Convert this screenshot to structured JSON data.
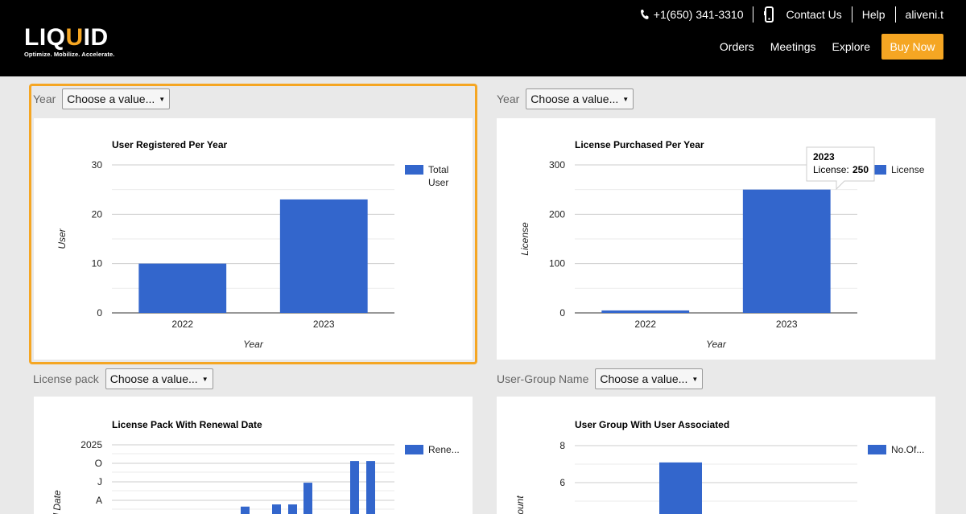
{
  "header": {
    "phone": "+1(650) 341-3310",
    "contact": "Contact Us",
    "help": "Help",
    "user": "aliveni.t",
    "logo_text": "LIQUID",
    "tagline": "Optimize. Mobilize. Accelerate.",
    "nav": [
      "Orders",
      "Meetings",
      "Explore"
    ],
    "buy_now": "Buy Now",
    "colors": {
      "accent": "#f5a623",
      "bar": "#3366cc"
    }
  },
  "filters": {
    "year1": {
      "label": "Year",
      "value": "Choose a value..."
    },
    "year2": {
      "label": "Year",
      "value": "Choose a value..."
    },
    "license_pack": {
      "label": "License pack",
      "value": "Choose a value..."
    },
    "user_group": {
      "label": "User-Group Name",
      "value": "Choose a value..."
    }
  },
  "tooltip": {
    "title": "2023",
    "label": "License:",
    "value": "250"
  },
  "chart_data": [
    {
      "type": "bar",
      "title": "User Registered Per Year",
      "categories": [
        "2022",
        "2023"
      ],
      "values": [
        10,
        23
      ],
      "series": [
        {
          "name": "Total User",
          "values": [
            10,
            23
          ]
        }
      ],
      "legend": [
        "Total",
        "User"
      ],
      "xlabel": "Year",
      "ylabel": "User",
      "ylim": [
        0,
        30
      ],
      "yticks": [
        "0",
        "10",
        "20",
        "30"
      ],
      "grid": true,
      "legend_position": "right"
    },
    {
      "type": "bar",
      "title": "License Purchased Per Year",
      "categories": [
        "2022",
        "2023"
      ],
      "values": [
        5,
        250
      ],
      "series": [
        {
          "name": "License",
          "values": [
            5,
            250
          ]
        }
      ],
      "legend": [
        "License"
      ],
      "xlabel": "Year",
      "ylabel": "License",
      "ylim": [
        0,
        300
      ],
      "yticks": [
        "0",
        "100",
        "200",
        "300"
      ],
      "grid": true,
      "legend_position": "right"
    },
    {
      "type": "bar",
      "title": "License Pack With Renewal Date",
      "yticks": [
        "2025",
        "O",
        "J",
        "A"
      ],
      "ylabel": "l Date",
      "values": [
        0.6,
        0.7,
        0.7,
        1.7,
        2.7,
        2.7
      ],
      "legend": [
        "Rene..."
      ],
      "grid": true,
      "legend_position": "right"
    },
    {
      "type": "bar",
      "title": "User Group With User Associated",
      "yticks": [
        "8",
        "6"
      ],
      "ylabel": "ount",
      "values": [
        7
      ],
      "legend": [
        "No.Of..."
      ],
      "grid": true,
      "legend_position": "right"
    }
  ]
}
